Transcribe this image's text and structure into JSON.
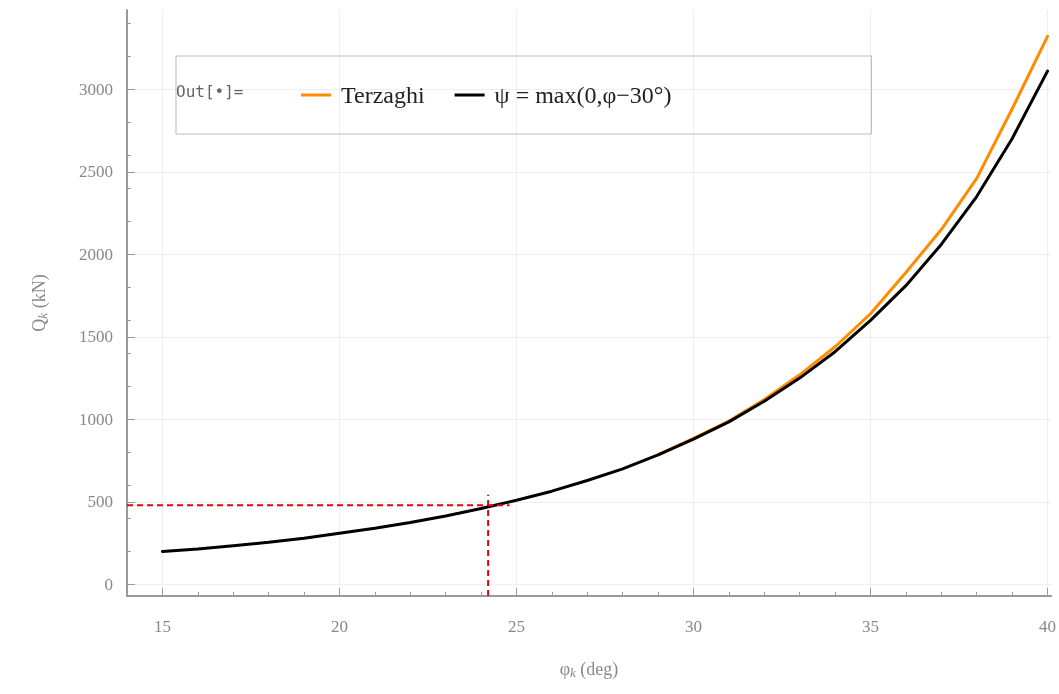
{
  "chart_data": {
    "type": "line",
    "xlabel": "φ$_{k}$ (deg)",
    "ylabel": "Q$_{k}$ (kN)",
    "x": [
      15,
      16,
      17,
      18,
      19,
      20,
      21,
      22,
      23,
      24,
      25,
      26,
      27,
      28,
      29,
      30,
      31,
      32,
      33,
      34,
      35,
      36,
      37,
      38,
      39,
      40
    ],
    "series": [
      {
        "name": "Terzaghi",
        "color": "#ff8c00",
        "values": [
          null,
          null,
          null,
          null,
          null,
          null,
          null,
          null,
          null,
          null,
          null,
          null,
          null,
          null,
          785,
          885,
          990,
          1120,
          1270,
          1440,
          1640,
          1890,
          2150,
          2460,
          2880,
          3320
        ]
      },
      {
        "name": "ψ = max(0,φ−30°)",
        "color": "#000000",
        "values": [
          200,
          215,
          235,
          255,
          280,
          310,
          340,
          375,
          415,
          460,
          510,
          565,
          630,
          700,
          785,
          880,
          985,
          1110,
          1250,
          1410,
          1600,
          1810,
          2060,
          2350,
          2700,
          3110
        ]
      }
    ],
    "xlim": [
      14,
      40.1
    ],
    "xticks": [
      15,
      20,
      25,
      30,
      35,
      40
    ],
    "ylim": [
      -70,
      3480
    ],
    "yticks": [
      0,
      500,
      1000,
      1500,
      2000,
      2500,
      3000
    ],
    "ref_lines": [
      {
        "axis": "x",
        "value": 24.2,
        "color": "#e8000b",
        "line_style": "dashed"
      },
      {
        "axis": "y",
        "value": 480,
        "color": "#e8000b",
        "line_style": "dashed"
      }
    ],
    "annotations": [
      "Out[•]="
    ],
    "grid": true,
    "legend": "top",
    "marker": "none",
    "line_style": "solid"
  }
}
